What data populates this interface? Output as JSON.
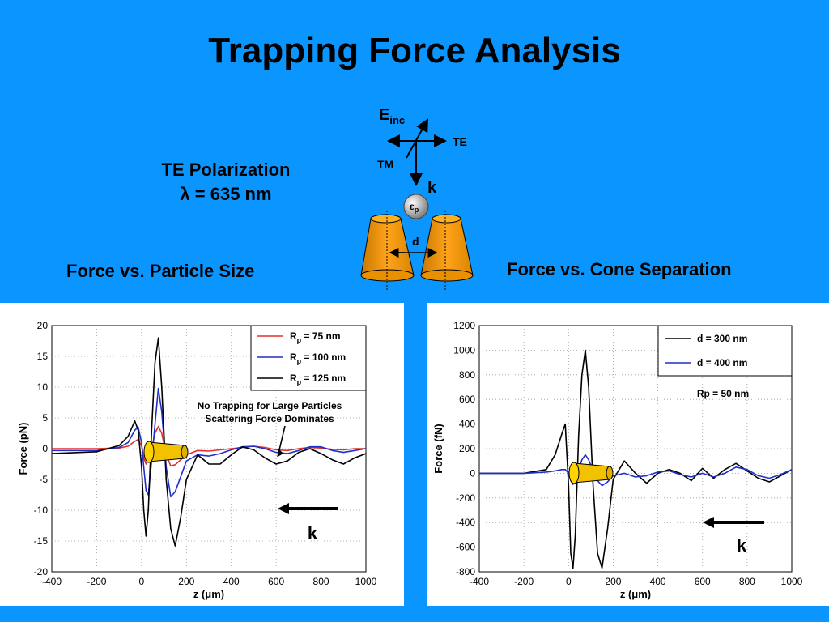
{
  "slide": {
    "title": "Trapping Force Analysis",
    "polarization": "TE Polarization",
    "wavelength": "λ = 635 nm",
    "left_subtitle": "Force vs. Particle Size",
    "right_subtitle": "Force vs. Cone Separation"
  },
  "diagram": {
    "e_label": "E",
    "e_sub": "inc",
    "te_label": "TE",
    "tm_label": "TM",
    "k_label": "k",
    "eps_label": "ε",
    "eps_sub": "p",
    "d_label": "d"
  },
  "chart_data": [
    {
      "type": "line",
      "xlabel": "z (μm)",
      "ylabel": "Force (pN)",
      "xlim": [
        -400,
        1000
      ],
      "ylim": [
        -20,
        20
      ],
      "xticks": [
        -400,
        -200,
        0,
        200,
        400,
        600,
        800,
        1000
      ],
      "yticks": [
        -20,
        -15,
        -10,
        -5,
        0,
        5,
        10,
        15,
        20
      ],
      "grid": true,
      "legend_position": "top-right",
      "annotation_lines": [
        "No Trapping for Large Particles",
        "Scattering Force Dominates"
      ],
      "k_label": "k",
      "series": [
        {
          "name": "R",
          "name_sub": "p",
          "name_rest": " = 75 nm",
          "color": "#e0302c",
          "x": [
            -400,
            -200,
            -100,
            -60,
            -30,
            -15,
            0,
            10,
            20,
            30,
            45,
            60,
            75,
            90,
            110,
            130,
            150,
            175,
            200,
            250,
            300,
            350,
            400,
            450,
            500,
            550,
            600,
            650,
            700,
            750,
            800,
            850,
            900,
            950,
            1000
          ],
          "y": [
            0,
            0,
            0.1,
            0.4,
            1.2,
            1.5,
            0.5,
            -1.5,
            -2.5,
            -2,
            0,
            2.5,
            3.6,
            2.5,
            -1,
            -2.8,
            -2.6,
            -1.8,
            -1,
            -0.3,
            -0.4,
            -0.2,
            0,
            0.2,
            0.4,
            0.2,
            -0.2,
            -0.3,
            0,
            0.2,
            0.1,
            -0.1,
            -0.2,
            0,
            0
          ]
        },
        {
          "name": "R",
          "name_sub": "p",
          "name_rest": " = 100 nm",
          "color": "#1f2fc9",
          "x": [
            -400,
            -200,
            -100,
            -60,
            -30,
            -15,
            0,
            10,
            20,
            30,
            45,
            60,
            75,
            90,
            110,
            130,
            150,
            175,
            200,
            250,
            300,
            350,
            400,
            450,
            500,
            550,
            600,
            650,
            700,
            750,
            800,
            850,
            900,
            950,
            1000
          ],
          "y": [
            -0.3,
            -0.3,
            0.2,
            1,
            3,
            3.5,
            1,
            -3,
            -6.8,
            -7.5,
            -2,
            4,
            9.8,
            6,
            -3,
            -7.8,
            -7,
            -4.5,
            -2,
            -1,
            -1.2,
            -0.8,
            -0.2,
            0.3,
            0.4,
            0,
            -0.6,
            -0.8,
            -0.3,
            0.3,
            0.3,
            -0.3,
            -0.6,
            -0.3,
            0
          ]
        },
        {
          "name": "R",
          "name_sub": "p",
          "name_rest": " = 125 nm",
          "color": "#000000",
          "x": [
            -400,
            -200,
            -100,
            -60,
            -30,
            -15,
            0,
            10,
            20,
            30,
            45,
            60,
            75,
            90,
            110,
            130,
            150,
            175,
            200,
            250,
            300,
            350,
            400,
            450,
            500,
            550,
            600,
            650,
            700,
            750,
            800,
            850,
            900,
            950,
            1000
          ],
          "y": [
            -0.8,
            -0.5,
            0.5,
            2,
            4.5,
            3,
            -3,
            -10,
            -14.2,
            -10,
            3,
            14,
            18,
            10,
            -5,
            -13,
            -15.8,
            -11,
            -5,
            -1,
            -2.5,
            -2.5,
            -1,
            0.3,
            -0.2,
            -1.5,
            -2.5,
            -2,
            -0.6,
            0,
            -0.8,
            -1.8,
            -2.5,
            -1.5,
            -0.8
          ]
        }
      ]
    },
    {
      "type": "line",
      "xlabel": "z (μm)",
      "ylabel": "Force (fN)",
      "xlim": [
        -400,
        1000
      ],
      "ylim": [
        -800,
        1200
      ],
      "xticks": [
        -400,
        -200,
        0,
        200,
        400,
        600,
        800,
        1000
      ],
      "yticks": [
        -800,
        -600,
        -400,
        -200,
        0,
        200,
        400,
        600,
        800,
        1000,
        1200
      ],
      "grid": true,
      "legend_position": "top-right",
      "annotation_lines": [
        "Rp = 50 nm"
      ],
      "k_label": "k",
      "series": [
        {
          "name": "d = 300 nm",
          "color": "#000000",
          "x": [
            -400,
            -200,
            -100,
            -60,
            -30,
            -15,
            0,
            10,
            20,
            30,
            45,
            60,
            75,
            90,
            110,
            130,
            150,
            175,
            200,
            250,
            300,
            350,
            400,
            450,
            500,
            550,
            600,
            650,
            700,
            750,
            800,
            850,
            900,
            950,
            1000
          ],
          "y": [
            0,
            0,
            30,
            150,
            320,
            400,
            -100,
            -650,
            -770,
            -500,
            300,
            800,
            1000,
            700,
            -100,
            -650,
            -770,
            -450,
            -50,
            100,
            0,
            -80,
            0,
            30,
            0,
            -60,
            40,
            -40,
            30,
            80,
            20,
            -40,
            -70,
            -20,
            30
          ]
        },
        {
          "name": "d = 400 nm",
          "color": "#1f2fc9",
          "x": [
            -400,
            -200,
            -100,
            -60,
            -30,
            -15,
            0,
            10,
            20,
            30,
            45,
            60,
            75,
            90,
            110,
            130,
            150,
            175,
            200,
            250,
            300,
            350,
            400,
            450,
            500,
            550,
            600,
            650,
            700,
            750,
            800,
            850,
            900,
            950,
            1000
          ],
          "y": [
            0,
            0,
            10,
            20,
            30,
            30,
            0,
            -60,
            -90,
            -60,
            30,
            110,
            150,
            110,
            20,
            -60,
            -100,
            -70,
            -20,
            0,
            -30,
            -20,
            10,
            20,
            -10,
            -30,
            0,
            -30,
            0,
            50,
            30,
            -20,
            -40,
            -10,
            30
          ]
        }
      ]
    }
  ]
}
